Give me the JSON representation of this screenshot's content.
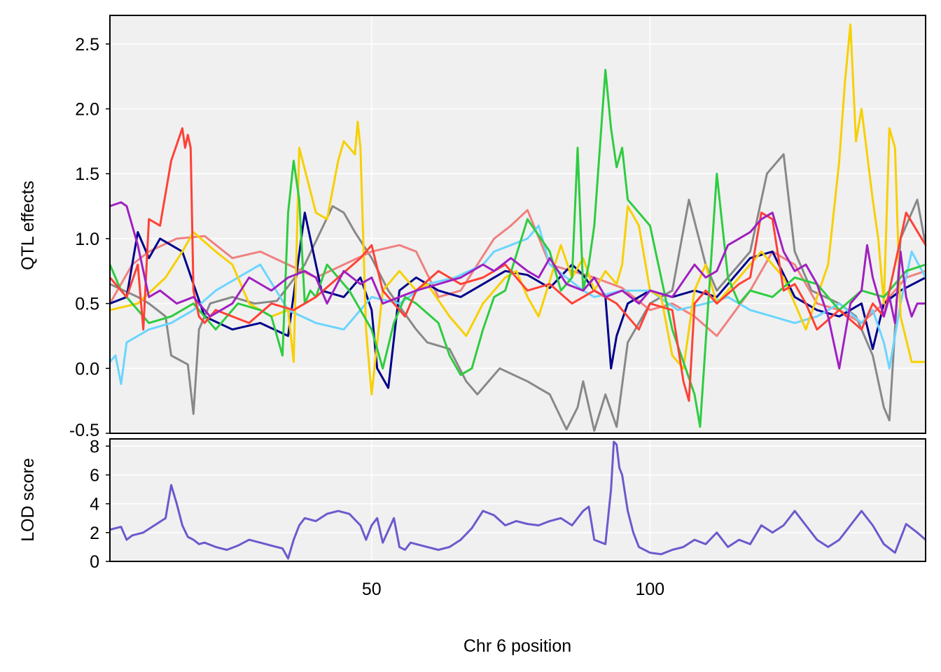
{
  "figure": {
    "xlabel": "Chr 6 position",
    "top_ylabel": "QTL effects",
    "bottom_ylabel": "LOD score"
  },
  "chart_data": [
    {
      "type": "line",
      "ylabel": "QTL effects",
      "xlim": [
        3,
        149.5
      ],
      "ylim": [
        -0.5,
        2.72
      ],
      "x_ticks": [
        50,
        100
      ],
      "y_ticks": [
        -0.5,
        0.0,
        0.5,
        1.0,
        1.5,
        2.0,
        2.5
      ],
      "y_tick_labels": [
        "-0.5",
        "0.0",
        "0.5",
        "1.0",
        "1.5",
        "2.0",
        "2.5"
      ],
      "grid": true,
      "panel_background": "#f0f0f0",
      "series": [
        {
          "color": "#888888",
          "x": [
            3,
            8,
            10,
            13,
            14,
            17,
            18,
            19,
            21,
            25,
            29,
            33,
            38,
            43,
            45,
            47,
            50,
            53,
            58,
            60,
            64,
            67,
            69,
            73,
            78,
            82,
            85,
            87,
            88,
            90,
            92,
            94,
            96,
            100,
            104,
            107,
            110,
            112,
            114,
            118,
            121,
            124,
            126,
            129,
            134,
            137,
            140,
            142,
            143,
            145,
            148,
            149.5
          ],
          "y": [
            0.65,
            0.55,
            0.5,
            0.4,
            0.1,
            0.03,
            -0.35,
            0.3,
            0.5,
            0.55,
            0.5,
            0.52,
            0.8,
            1.25,
            1.2,
            1.05,
            0.85,
            0.6,
            0.3,
            0.2,
            0.15,
            -0.1,
            -0.2,
            0.0,
            -0.1,
            -0.2,
            -0.47,
            -0.3,
            -0.1,
            -0.48,
            -0.2,
            -0.45,
            0.2,
            0.5,
            0.6,
            1.3,
            0.8,
            0.6,
            0.7,
            0.9,
            1.5,
            1.65,
            0.9,
            0.6,
            0.5,
            0.4,
            0.1,
            -0.3,
            -0.4,
            1.0,
            1.3,
            0.95
          ]
        },
        {
          "color": "#f08080",
          "x": [
            3,
            7,
            10,
            15,
            20,
            25,
            30,
            35,
            40,
            45,
            50,
            55,
            58,
            62,
            66,
            69,
            72,
            75,
            78,
            82,
            86,
            90,
            95,
            100,
            104,
            108,
            112,
            118,
            122,
            126,
            130,
            134,
            138,
            142,
            146,
            149.5
          ],
          "y": [
            0.5,
            0.8,
            0.9,
            1.0,
            1.02,
            0.85,
            0.9,
            0.8,
            0.7,
            0.8,
            0.9,
            0.95,
            0.9,
            0.55,
            0.6,
            0.8,
            1.0,
            1.1,
            1.22,
            0.8,
            0.75,
            0.7,
            0.62,
            0.45,
            0.5,
            0.4,
            0.25,
            0.6,
            0.9,
            0.8,
            0.5,
            0.45,
            0.35,
            0.5,
            0.7,
            0.75
          ]
        },
        {
          "color": "#00008b",
          "x": [
            3,
            6,
            8,
            10,
            12,
            16,
            20,
            25,
            30,
            35,
            38,
            41,
            45,
            48,
            50,
            51,
            53,
            55,
            58,
            62,
            66,
            70,
            74,
            78,
            82,
            86,
            88,
            90,
            92,
            93,
            94,
            96,
            100,
            104,
            108,
            112,
            118,
            122,
            126,
            130,
            134,
            138,
            140,
            142,
            145,
            149.5
          ],
          "y": [
            0.5,
            0.55,
            1.05,
            0.85,
            1.0,
            0.9,
            0.4,
            0.3,
            0.35,
            0.25,
            1.2,
            0.6,
            0.55,
            0.7,
            0.45,
            0.0,
            -0.15,
            0.6,
            0.7,
            0.6,
            0.55,
            0.65,
            0.75,
            0.72,
            0.62,
            0.8,
            0.72,
            0.6,
            0.55,
            0.0,
            0.25,
            0.5,
            0.6,
            0.55,
            0.6,
            0.55,
            0.85,
            0.9,
            0.55,
            0.45,
            0.4,
            0.5,
            0.15,
            0.5,
            0.6,
            0.7
          ]
        },
        {
          "color": "#6bd5ff",
          "x": [
            3,
            4,
            5,
            6,
            8,
            10,
            14,
            18,
            22,
            26,
            30,
            35,
            40,
            45,
            48,
            50,
            55,
            60,
            65,
            70,
            72,
            75,
            78,
            80,
            82,
            85,
            88,
            90,
            95,
            100,
            105,
            110,
            114,
            118,
            122,
            126,
            130,
            134,
            138,
            140,
            142,
            143,
            145,
            147,
            149.5
          ],
          "y": [
            0.05,
            0.1,
            -0.12,
            0.2,
            0.25,
            0.3,
            0.35,
            0.45,
            0.6,
            0.7,
            0.8,
            0.45,
            0.35,
            0.3,
            0.45,
            0.55,
            0.5,
            0.65,
            0.7,
            0.8,
            0.9,
            0.95,
            1.0,
            1.1,
            0.8,
            0.7,
            0.6,
            0.55,
            0.6,
            0.6,
            0.45,
            0.5,
            0.55,
            0.45,
            0.4,
            0.35,
            0.4,
            0.5,
            0.35,
            0.45,
            0.2,
            0.0,
            0.5,
            0.9,
            0.7
          ]
        },
        {
          "color": "#f7d000",
          "x": [
            3,
            8,
            13,
            16,
            18,
            22,
            25,
            28,
            32,
            35,
            36,
            37,
            40,
            42,
            44,
            45,
            47,
            47.5,
            48,
            49,
            50,
            52,
            55,
            58,
            60,
            64,
            67,
            70,
            72,
            74,
            76,
            78,
            80,
            84,
            86,
            88,
            90,
            92,
            94,
            95,
            96,
            98,
            100,
            102,
            104,
            106,
            108,
            110,
            112,
            116,
            120,
            124,
            128,
            132,
            134,
            135,
            136,
            137,
            138,
            140,
            141,
            142,
            143,
            144,
            145,
            147,
            149.5
          ],
          "y": [
            0.45,
            0.5,
            0.7,
            0.9,
            1.05,
            0.9,
            0.8,
            0.5,
            0.4,
            0.45,
            0.05,
            1.7,
            1.2,
            1.15,
            1.6,
            1.75,
            1.65,
            1.9,
            1.7,
            0.3,
            -0.2,
            0.6,
            0.75,
            0.6,
            0.65,
            0.4,
            0.25,
            0.5,
            0.6,
            0.7,
            0.75,
            0.55,
            0.4,
            0.95,
            0.7,
            0.85,
            0.6,
            0.75,
            0.65,
            0.8,
            1.25,
            1.1,
            0.6,
            0.55,
            0.1,
            0.0,
            0.6,
            0.8,
            0.5,
            0.7,
            0.9,
            0.7,
            0.3,
            0.8,
            1.6,
            2.2,
            2.65,
            1.75,
            2.0,
            1.3,
            1.0,
            0.5,
            1.85,
            1.7,
            0.4,
            0.05,
            0.05
          ]
        },
        {
          "color": "#2ecc40",
          "x": [
            3,
            5,
            8,
            10,
            14,
            18,
            22,
            26,
            30,
            32,
            34,
            35,
            36,
            37,
            38,
            39,
            40,
            42,
            46,
            50,
            52,
            54,
            56,
            58,
            62,
            64,
            66,
            68,
            70,
            72,
            74,
            78,
            82,
            84,
            86,
            87,
            88,
            89,
            90,
            92,
            93,
            94,
            95,
            96,
            98,
            100,
            102,
            104,
            106,
            108,
            109,
            110,
            112,
            114,
            116,
            118,
            122,
            126,
            130,
            134,
            138,
            142,
            146,
            149.5
          ],
          "y": [
            0.8,
            0.6,
            0.45,
            0.35,
            0.4,
            0.5,
            0.3,
            0.5,
            0.45,
            0.4,
            0.1,
            1.2,
            1.6,
            1.3,
            0.5,
            0.6,
            0.55,
            0.8,
            0.6,
            0.3,
            0.0,
            0.35,
            0.55,
            0.5,
            0.35,
            0.1,
            -0.05,
            0.0,
            0.3,
            0.55,
            0.6,
            1.15,
            0.9,
            0.6,
            0.7,
            1.7,
            0.6,
            0.8,
            1.1,
            2.3,
            1.85,
            1.55,
            1.7,
            1.3,
            1.2,
            1.1,
            0.7,
            0.3,
            0.05,
            -0.2,
            -0.45,
            0.2,
            1.5,
            0.7,
            0.5,
            0.6,
            0.55,
            0.7,
            0.65,
            0.45,
            0.6,
            0.55,
            0.75,
            0.8
          ]
        },
        {
          "color": "#ff4136",
          "x": [
            3,
            6,
            8,
            9,
            10,
            12,
            14,
            16,
            16.5,
            17,
            17.5,
            18,
            19,
            20,
            22,
            25,
            28,
            32,
            36,
            40,
            44,
            48,
            50,
            52,
            54,
            56,
            58,
            62,
            66,
            70,
            74,
            78,
            82,
            86,
            90,
            94,
            98,
            100,
            104,
            106,
            107,
            108,
            110,
            112,
            116,
            118,
            120,
            122,
            124,
            126,
            128,
            130,
            134,
            138,
            140,
            142,
            146,
            149.5
          ],
          "y": [
            0.7,
            0.55,
            0.8,
            0.3,
            1.15,
            1.1,
            1.6,
            1.85,
            1.7,
            1.8,
            1.7,
            0.6,
            0.4,
            0.35,
            0.45,
            0.4,
            0.35,
            0.5,
            0.45,
            0.55,
            0.7,
            0.85,
            0.95,
            0.6,
            0.5,
            0.4,
            0.6,
            0.75,
            0.65,
            0.7,
            0.8,
            0.6,
            0.65,
            0.5,
            0.6,
            0.5,
            0.3,
            0.5,
            0.45,
            -0.1,
            -0.25,
            0.5,
            0.6,
            0.5,
            0.65,
            0.7,
            1.2,
            1.15,
            0.6,
            0.65,
            0.5,
            0.3,
            0.45,
            0.3,
            0.5,
            0.4,
            1.2,
            0.95
          ]
        },
        {
          "color": "#a020c0",
          "x": [
            3,
            5,
            6,
            8,
            10,
            12,
            15,
            18,
            21,
            25,
            28,
            32,
            35,
            38,
            40,
            42,
            45,
            48,
            50,
            52,
            55,
            58,
            62,
            66,
            70,
            72,
            75,
            78,
            80,
            82,
            85,
            88,
            90,
            92,
            95,
            98,
            100,
            104,
            108,
            110,
            112,
            114,
            116,
            118,
            120,
            122,
            124,
            126,
            128,
            130,
            132,
            134,
            136,
            138,
            139,
            140,
            142,
            143,
            144,
            145,
            146,
            147,
            148,
            149.5
          ],
          "y": [
            1.25,
            1.28,
            1.25,
            0.95,
            0.55,
            0.6,
            0.5,
            0.55,
            0.4,
            0.5,
            0.7,
            0.6,
            0.7,
            0.75,
            0.7,
            0.5,
            0.75,
            0.65,
            0.7,
            0.5,
            0.55,
            0.6,
            0.65,
            0.7,
            0.8,
            0.75,
            0.85,
            0.75,
            0.7,
            0.85,
            0.65,
            0.6,
            0.7,
            0.55,
            0.6,
            0.5,
            0.6,
            0.55,
            0.8,
            0.7,
            0.75,
            0.95,
            1.0,
            1.05,
            1.15,
            1.2,
            0.9,
            0.75,
            0.8,
            0.65,
            0.4,
            0.0,
            0.5,
            0.6,
            0.95,
            0.7,
            0.4,
            0.55,
            0.35,
            0.9,
            0.55,
            0.4,
            0.5,
            0.5
          ]
        }
      ]
    },
    {
      "type": "line",
      "ylabel": "LOD score",
      "xlabel": "Chr 6 position",
      "xlim": [
        3,
        149.5
      ],
      "ylim": [
        0,
        8.5
      ],
      "x_ticks": [
        50,
        100
      ],
      "x_tick_labels": [
        "50",
        "100"
      ],
      "y_ticks": [
        0,
        2,
        4,
        6,
        8
      ],
      "y_tick_labels": [
        "0",
        "2",
        "4",
        "6",
        "8"
      ],
      "grid": true,
      "panel_background": "#f0f0f0",
      "series": [
        {
          "color": "#6a5acd",
          "x": [
            3,
            5,
            6,
            7,
            9,
            11,
            13,
            14,
            15,
            16,
            17,
            18,
            19,
            20,
            22,
            24,
            26,
            28,
            30,
            32,
            34,
            35,
            36,
            37,
            38,
            40,
            42,
            44,
            46,
            48,
            49,
            50,
            51,
            52,
            54,
            55,
            56,
            57,
            58,
            60,
            62,
            64,
            66,
            68,
            70,
            72,
            74,
            76,
            78,
            80,
            82,
            84,
            86,
            88,
            89,
            90,
            92,
            93,
            93.5,
            94,
            94.5,
            95,
            96,
            97,
            98,
            100,
            102,
            104,
            106,
            108,
            110,
            112,
            114,
            116,
            118,
            120,
            122,
            124,
            126,
            128,
            130,
            132,
            134,
            136,
            138,
            140,
            142,
            144,
            146,
            148,
            149.5
          ],
          "y": [
            2.2,
            2.4,
            1.5,
            1.8,
            2.0,
            2.5,
            3.0,
            5.3,
            4.0,
            2.5,
            1.7,
            1.5,
            1.2,
            1.3,
            1.0,
            0.8,
            1.1,
            1.5,
            1.3,
            1.1,
            0.9,
            0.2,
            1.5,
            2.5,
            3.0,
            2.8,
            3.3,
            3.5,
            3.3,
            2.5,
            1.5,
            2.5,
            3.0,
            1.3,
            3.0,
            1.0,
            0.8,
            1.3,
            1.2,
            1.0,
            0.8,
            1.0,
            1.5,
            2.3,
            3.5,
            3.2,
            2.5,
            2.8,
            2.6,
            2.5,
            2.8,
            3.0,
            2.5,
            3.5,
            3.8,
            1.5,
            1.2,
            5.0,
            8.3,
            8.1,
            6.5,
            6.0,
            3.5,
            2.0,
            1.0,
            0.6,
            0.5,
            0.8,
            1.0,
            1.5,
            1.2,
            2.0,
            1.0,
            1.5,
            1.2,
            2.5,
            2.0,
            2.5,
            3.5,
            2.5,
            1.5,
            1.0,
            1.5,
            2.5,
            3.5,
            2.5,
            1.2,
            0.6,
            2.6,
            2.0,
            1.5
          ]
        }
      ]
    }
  ]
}
